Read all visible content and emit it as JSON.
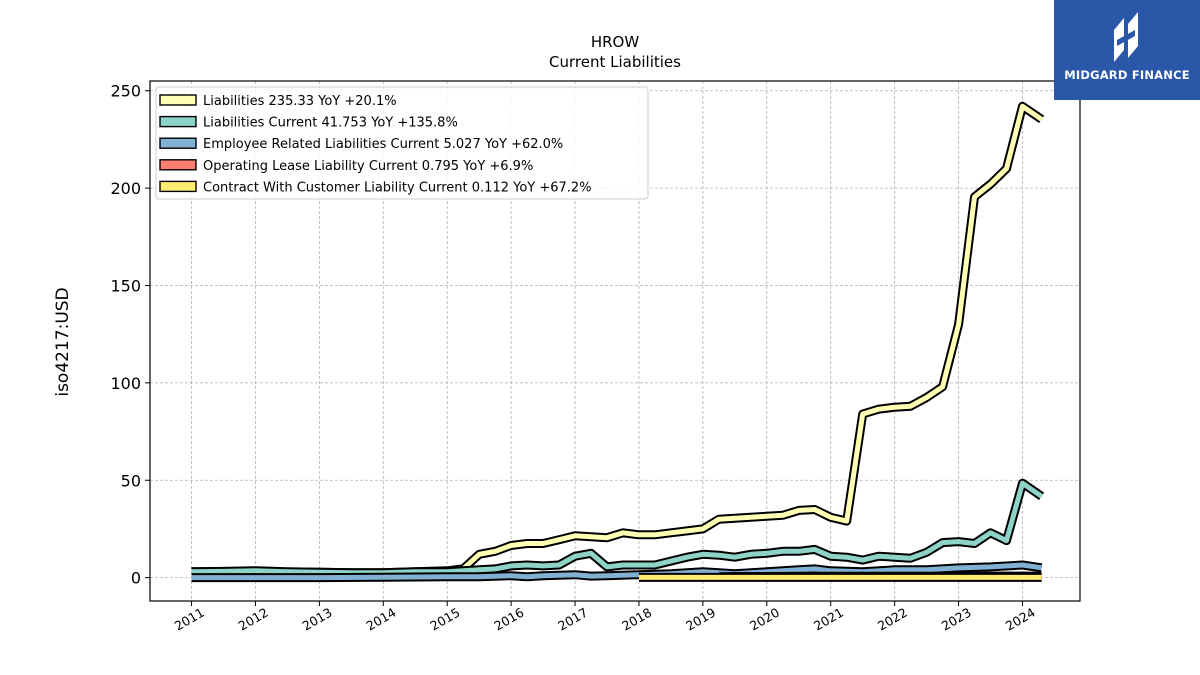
{
  "chart_data": {
    "type": "line",
    "title": "HROW",
    "subtitle": "Current  Liabilities",
    "ylabel": "iso4217:USD",
    "xlabel": "",
    "ylim": [
      -12,
      255
    ],
    "xlim": [
      2010.35,
      2024.9
    ],
    "yticks": [
      0,
      50,
      100,
      150,
      200,
      250
    ],
    "xticks": [
      "2011",
      "2012",
      "2013",
      "2014",
      "2015",
      "2016",
      "2017",
      "2018",
      "2019",
      "2020",
      "2021",
      "2022",
      "2023",
      "2024"
    ],
    "grid": true,
    "legend_position": "top-left",
    "series": [
      {
        "name": "Liabilities  235.33 YoY +20.1%",
        "color": "#ffffb3",
        "points": [
          [
            2011.0,
            3
          ],
          [
            2011.5,
            3
          ],
          [
            2012.0,
            3.2
          ],
          [
            2012.5,
            2.8
          ],
          [
            2013.0,
            2.8
          ],
          [
            2013.5,
            2.5
          ],
          [
            2014.0,
            2.5
          ],
          [
            2014.5,
            3
          ],
          [
            2015.0,
            3.5
          ],
          [
            2015.25,
            4.5
          ],
          [
            2015.5,
            12
          ],
          [
            2015.75,
            13.5
          ],
          [
            2016.0,
            16.5
          ],
          [
            2016.25,
            17.5
          ],
          [
            2016.5,
            17.5
          ],
          [
            2016.75,
            19.5
          ],
          [
            2017.0,
            21.5
          ],
          [
            2017.25,
            21
          ],
          [
            2017.5,
            20.5
          ],
          [
            2017.75,
            23
          ],
          [
            2018.0,
            22
          ],
          [
            2018.25,
            22
          ],
          [
            2018.5,
            23
          ],
          [
            2018.75,
            24
          ],
          [
            2019.0,
            25
          ],
          [
            2019.25,
            30
          ],
          [
            2019.5,
            30.5
          ],
          [
            2019.75,
            31
          ],
          [
            2020.0,
            31.5
          ],
          [
            2020.25,
            32
          ],
          [
            2020.5,
            34.5
          ],
          [
            2020.75,
            35
          ],
          [
            2021.0,
            31
          ],
          [
            2021.25,
            29
          ],
          [
            2021.5,
            84
          ],
          [
            2021.75,
            86.5
          ],
          [
            2022.0,
            87.5
          ],
          [
            2022.25,
            88
          ],
          [
            2022.5,
            92.5
          ],
          [
            2022.75,
            98
          ],
          [
            2023.0,
            130
          ],
          [
            2023.25,
            195.5
          ],
          [
            2023.5,
            202
          ],
          [
            2023.75,
            210
          ],
          [
            2024.0,
            242
          ],
          [
            2024.3,
            235.33
          ]
        ]
      },
      {
        "name": "Liabilities Current  41.753 YoY +135.8%",
        "color": "#8dd3c7",
        "points": [
          [
            2011.0,
            3
          ],
          [
            2011.5,
            3.2
          ],
          [
            2012.0,
            3.5
          ],
          [
            2012.5,
            3
          ],
          [
            2013.0,
            2.8
          ],
          [
            2013.5,
            2.5
          ],
          [
            2014.0,
            2.5
          ],
          [
            2014.5,
            3
          ],
          [
            2015.0,
            3
          ],
          [
            2015.5,
            4
          ],
          [
            2015.75,
            4.5
          ],
          [
            2016.0,
            6
          ],
          [
            2016.25,
            6.5
          ],
          [
            2016.5,
            6
          ],
          [
            2016.75,
            6.5
          ],
          [
            2017.0,
            11
          ],
          [
            2017.25,
            12.5
          ],
          [
            2017.5,
            5.5
          ],
          [
            2017.75,
            6.5
          ],
          [
            2018.0,
            6.5
          ],
          [
            2018.25,
            6.5
          ],
          [
            2018.5,
            8.5
          ],
          [
            2018.75,
            10.5
          ],
          [
            2019.0,
            12
          ],
          [
            2019.25,
            11.5
          ],
          [
            2019.5,
            10.5
          ],
          [
            2019.75,
            12
          ],
          [
            2020.0,
            12.5
          ],
          [
            2020.25,
            13.5
          ],
          [
            2020.5,
            13.5
          ],
          [
            2020.75,
            14.5
          ],
          [
            2021.0,
            11
          ],
          [
            2021.25,
            10.5
          ],
          [
            2021.5,
            9
          ],
          [
            2021.75,
            11
          ],
          [
            2022.0,
            10.5
          ],
          [
            2022.25,
            10
          ],
          [
            2022.5,
            13
          ],
          [
            2022.75,
            18
          ],
          [
            2023.0,
            18.5
          ],
          [
            2023.25,
            17.5
          ],
          [
            2023.5,
            23
          ],
          [
            2023.75,
            19
          ],
          [
            2024.0,
            48.5
          ],
          [
            2024.3,
            41.753
          ]
        ]
      },
      {
        "name": "Employee Related Liabilities Current  5.027 YoY +62.0%",
        "color": "#80b1d3",
        "points": [
          [
            2011.0,
            0
          ],
          [
            2012.0,
            0
          ],
          [
            2013.0,
            0
          ],
          [
            2014.0,
            0.2
          ],
          [
            2015.0,
            0.5
          ],
          [
            2015.5,
            0.5
          ],
          [
            2016.0,
            1
          ],
          [
            2016.25,
            0.5
          ],
          [
            2016.5,
            1
          ],
          [
            2017.0,
            1.5
          ],
          [
            2017.25,
            0.8
          ],
          [
            2017.5,
            1
          ],
          [
            2018.0,
            1.5
          ],
          [
            2018.5,
            2
          ],
          [
            2019.0,
            3
          ],
          [
            2019.5,
            2
          ],
          [
            2020.0,
            3
          ],
          [
            2020.5,
            4
          ],
          [
            2020.75,
            4.5
          ],
          [
            2021.0,
            3.5
          ],
          [
            2021.5,
            3
          ],
          [
            2022.0,
            4
          ],
          [
            2022.5,
            4
          ],
          [
            2023.0,
            5
          ],
          [
            2023.5,
            5.5
          ],
          [
            2024.0,
            6.5
          ],
          [
            2024.3,
            5.027
          ]
        ]
      },
      {
        "name": "Operating Lease Liability Current  0.795 YoY +6.9%",
        "color": "#fb8072",
        "points": [
          [
            2019.25,
            0.5
          ],
          [
            2019.5,
            0.6
          ],
          [
            2020.0,
            0.6
          ],
          [
            2020.5,
            0.7
          ],
          [
            2021.0,
            0.7
          ],
          [
            2021.5,
            0.7
          ],
          [
            2022.0,
            0.7
          ],
          [
            2022.5,
            0.75
          ],
          [
            2023.0,
            0.75
          ],
          [
            2023.5,
            0.78
          ],
          [
            2024.0,
            0.8
          ],
          [
            2024.3,
            0.795
          ]
        ]
      },
      {
        "name": "Contract With Customer Liability Current  0.112 YoY +67.2%",
        "color": "#ffed6f",
        "points": [
          [
            2018.0,
            0.1
          ],
          [
            2018.5,
            0.1
          ],
          [
            2019.0,
            0.1
          ],
          [
            2019.5,
            0.1
          ],
          [
            2020.0,
            0.1
          ],
          [
            2020.5,
            0.1
          ],
          [
            2021.0,
            0.1
          ],
          [
            2021.5,
            0.1
          ],
          [
            2022.0,
            0.1
          ],
          [
            2022.5,
            0.1
          ],
          [
            2023.0,
            0.1
          ],
          [
            2023.5,
            0.1
          ],
          [
            2024.0,
            0.1
          ],
          [
            2024.3,
            0.112
          ]
        ]
      }
    ]
  },
  "watermark": {
    "brand": "MIDGARD FINANCE",
    "color": "#2a57a8"
  }
}
